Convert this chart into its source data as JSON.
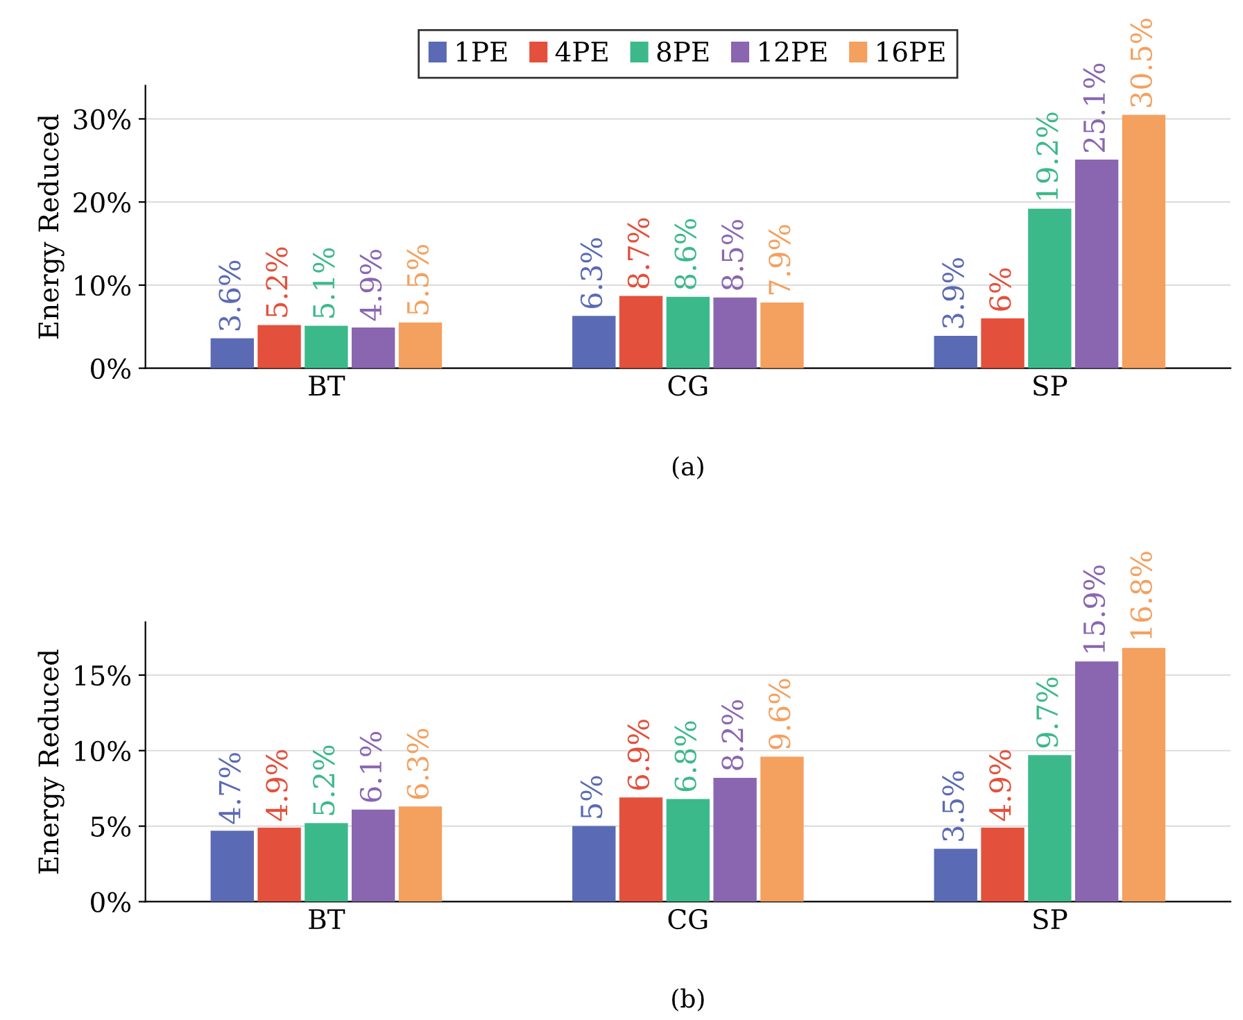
{
  "chart_data": [
    {
      "type": "bar",
      "title": "(a)",
      "ylabel": "Energy Reduced",
      "categories": [
        "BT",
        "CG",
        "SP"
      ],
      "ylim": [
        0,
        34
      ],
      "yticks": [
        {
          "value": 0,
          "label": "0%"
        },
        {
          "value": 10,
          "label": "10%"
        },
        {
          "value": 20,
          "label": "20%"
        },
        {
          "value": 30,
          "label": "30%"
        }
      ],
      "grid": "y",
      "legend": "top",
      "series": [
        {
          "name": "1PE",
          "color": "#5b6ab4",
          "values": [
            3.6,
            6.3,
            3.9
          ],
          "value_labels": [
            "3.6%",
            "6.3%",
            "3.9%"
          ]
        },
        {
          "name": "4PE",
          "color": "#e3503b",
          "values": [
            5.2,
            8.7,
            6
          ],
          "value_labels": [
            "5.2%",
            "8.7%",
            "6%"
          ]
        },
        {
          "name": "8PE",
          "color": "#3cb98b",
          "values": [
            5.1,
            8.6,
            19.2
          ],
          "value_labels": [
            "5.1%",
            "8.6%",
            "19.2%"
          ]
        },
        {
          "name": "12PE",
          "color": "#8a66b0",
          "values": [
            4.9,
            8.5,
            25.1
          ],
          "value_labels": [
            "4.9%",
            "8.5%",
            "25.1%"
          ]
        },
        {
          "name": "16PE",
          "color": "#f4a05f",
          "values": [
            5.5,
            7.9,
            30.5
          ],
          "value_labels": [
            "5.5%",
            "7.9%",
            "30.5%"
          ]
        }
      ]
    },
    {
      "type": "bar",
      "title": "(b)",
      "ylabel": "Energy Reduced",
      "categories": [
        "BT",
        "CG",
        "SP"
      ],
      "ylim": [
        0,
        18.5
      ],
      "yticks": [
        {
          "value": 0,
          "label": "0%"
        },
        {
          "value": 5,
          "label": "5%"
        },
        {
          "value": 10,
          "label": "10%"
        },
        {
          "value": 15,
          "label": "15%"
        }
      ],
      "grid": "y",
      "series": [
        {
          "color": "#5b6ab4",
          "values": [
            4.7,
            5,
            3.5
          ],
          "value_labels": [
            "4.7%",
            "5%",
            "3.5%"
          ]
        },
        {
          "color": "#e3503b",
          "values": [
            4.9,
            6.9,
            4.9
          ],
          "value_labels": [
            "4.9%",
            "6.9%",
            "4.9%"
          ]
        },
        {
          "color": "#3cb98b",
          "values": [
            5.2,
            6.8,
            9.7
          ],
          "value_labels": [
            "5.2%",
            "6.8%",
            "9.7%"
          ]
        },
        {
          "color": "#8a66b0",
          "values": [
            6.1,
            8.2,
            15.9
          ],
          "value_labels": [
            "6.1%",
            "8.2%",
            "15.9%"
          ]
        },
        {
          "color": "#f4a05f",
          "values": [
            6.3,
            9.6,
            16.8
          ],
          "value_labels": [
            "6.3%",
            "9.6%",
            "16.8%"
          ]
        }
      ]
    }
  ]
}
